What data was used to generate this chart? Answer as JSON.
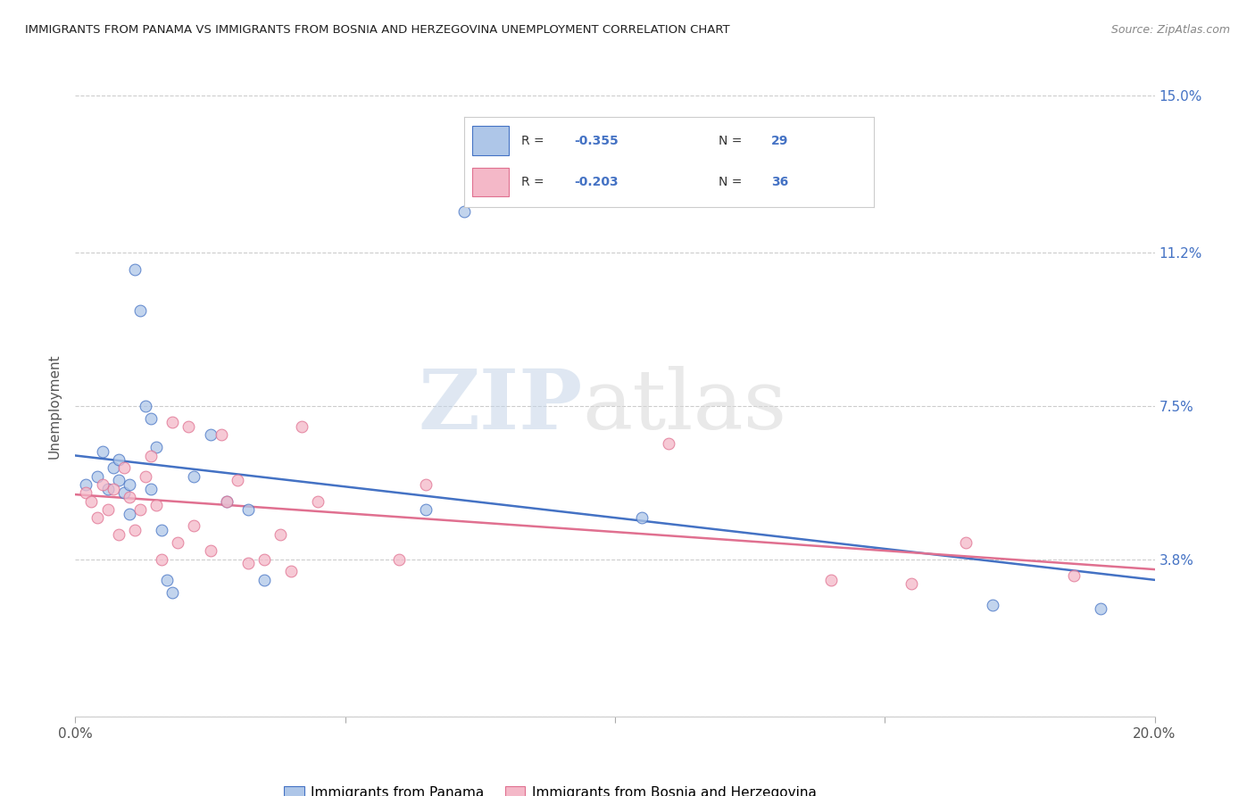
{
  "title": "IMMIGRANTS FROM PANAMA VS IMMIGRANTS FROM BOSNIA AND HERZEGOVINA UNEMPLOYMENT CORRELATION CHART",
  "source": "Source: ZipAtlas.com",
  "ylabel": "Unemployment",
  "xlim": [
    0.0,
    0.2
  ],
  "ylim": [
    0.0,
    0.15
  ],
  "yticks": [
    0.0,
    0.038,
    0.075,
    0.112,
    0.15
  ],
  "ytick_labels": [
    "",
    "3.8%",
    "7.5%",
    "11.2%",
    "15.0%"
  ],
  "xticks": [
    0.0,
    0.05,
    0.1,
    0.15,
    0.2
  ],
  "xtick_labels": [
    "0.0%",
    "",
    "",
    "",
    "20.0%"
  ],
  "watermark_zip": "ZIP",
  "watermark_atlas": "atlas",
  "legend_r_panama": "-0.355",
  "legend_n_panama": "29",
  "legend_r_bosnia": "-0.203",
  "legend_n_bosnia": "36",
  "legend_label_panama": "Immigrants from Panama",
  "legend_label_bosnia": "Immigrants from Bosnia and Herzegovina",
  "panama_color": "#aec6e8",
  "panama_edge_color": "#4472c4",
  "panama_line_color": "#4472c4",
  "bosnia_color": "#f4b8c8",
  "bosnia_edge_color": "#e07090",
  "bosnia_line_color": "#e07090",
  "scatter_size": 85,
  "scatter_alpha": 0.75,
  "panama_points_x": [
    0.002,
    0.004,
    0.005,
    0.006,
    0.007,
    0.008,
    0.008,
    0.009,
    0.01,
    0.01,
    0.011,
    0.012,
    0.013,
    0.014,
    0.014,
    0.015,
    0.016,
    0.017,
    0.018,
    0.022,
    0.025,
    0.028,
    0.032,
    0.035,
    0.065,
    0.072,
    0.105,
    0.17,
    0.19
  ],
  "panama_points_y": [
    0.056,
    0.058,
    0.064,
    0.055,
    0.06,
    0.057,
    0.062,
    0.054,
    0.049,
    0.056,
    0.108,
    0.098,
    0.075,
    0.072,
    0.055,
    0.065,
    0.045,
    0.033,
    0.03,
    0.058,
    0.068,
    0.052,
    0.05,
    0.033,
    0.05,
    0.122,
    0.048,
    0.027,
    0.026
  ],
  "bosnia_points_x": [
    0.002,
    0.003,
    0.004,
    0.005,
    0.006,
    0.007,
    0.008,
    0.009,
    0.01,
    0.011,
    0.012,
    0.013,
    0.014,
    0.015,
    0.016,
    0.018,
    0.019,
    0.021,
    0.022,
    0.025,
    0.027,
    0.028,
    0.03,
    0.032,
    0.035,
    0.038,
    0.04,
    0.042,
    0.045,
    0.06,
    0.065,
    0.11,
    0.14,
    0.155,
    0.165,
    0.185
  ],
  "bosnia_points_y": [
    0.054,
    0.052,
    0.048,
    0.056,
    0.05,
    0.055,
    0.044,
    0.06,
    0.053,
    0.045,
    0.05,
    0.058,
    0.063,
    0.051,
    0.038,
    0.071,
    0.042,
    0.07,
    0.046,
    0.04,
    0.068,
    0.052,
    0.057,
    0.037,
    0.038,
    0.044,
    0.035,
    0.07,
    0.052,
    0.038,
    0.056,
    0.066,
    0.033,
    0.032,
    0.042,
    0.034
  ]
}
